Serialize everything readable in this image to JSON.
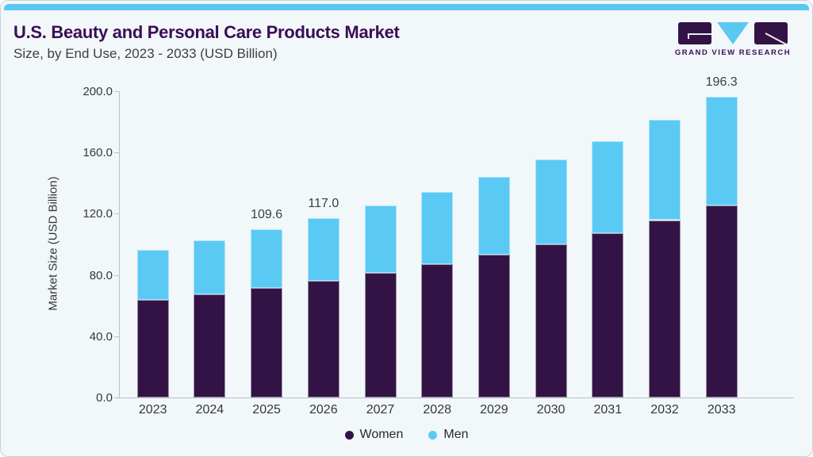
{
  "page": {
    "title": "U.S. Beauty and Personal Care Products Market",
    "subtitle": "Size, by End Use, 2023 - 2033 (USD Billion)"
  },
  "logo": {
    "brand": "Grand View Research",
    "text": "GRAND VIEW RESEARCH"
  },
  "colors": {
    "accent_blue": "#5bc8f2",
    "brand_purple": "#3a0e55",
    "bar_women": "#331345",
    "bar_men": "#5ac9f4",
    "background": "#f2f7fa",
    "axis_line": "#b9c2c9",
    "tick_text": "#33373c"
  },
  "chart_data": {
    "type": "bar",
    "stacked": true,
    "title": "U.S. Beauty and Personal Care Products Market Size, by End Use, 2023 - 2033 (USD Billion)",
    "categories": [
      "2023",
      "2024",
      "2025",
      "2026",
      "2027",
      "2028",
      "2029",
      "2030",
      "2031",
      "2032",
      "2033"
    ],
    "series": [
      {
        "name": "Women",
        "color": "#331345",
        "values": [
          63.5,
          67.5,
          71.5,
          76.2,
          81.4,
          87.2,
          93.1,
          100.2,
          107.5,
          115.8,
          125.4
        ]
      },
      {
        "name": "Men",
        "color": "#5ac9f4",
        "values": [
          32.7,
          34.9,
          38.1,
          40.8,
          43.8,
          47.0,
          51.2,
          55.3,
          59.9,
          65.3,
          70.9
        ]
      }
    ],
    "totals": [
      96.2,
      102.4,
      109.6,
      117.0,
      125.2,
      134.2,
      144.3,
      155.5,
      167.4,
      181.1,
      196.3
    ],
    "bar_labels": [
      "",
      "",
      "109.6",
      "117.0",
      "",
      "",
      "",
      "",
      "",
      "",
      "196.3"
    ],
    "xlabel": "",
    "ylabel": "Market Size (USD Billion)",
    "ylim": [
      0,
      200
    ],
    "yticks": [
      "0.0",
      "40.0",
      "80.0",
      "120.0",
      "160.0",
      "200.0"
    ],
    "grid": false,
    "legend_position": "bottom"
  }
}
